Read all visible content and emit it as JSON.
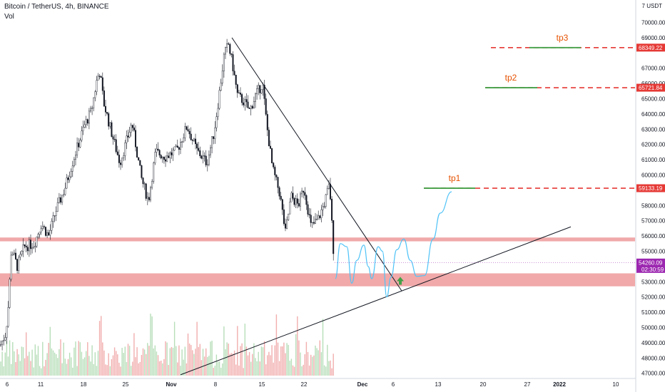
{
  "header": {
    "title": "Bitcoin / TetherUS, 4h, BINANCE",
    "volume_label": "Vol"
  },
  "price_axis": {
    "unit_label": "7 USDT",
    "ticks": [
      "70000.00",
      "69000.00",
      "67000.00",
      "66000.00",
      "65000.00",
      "64000.00",
      "63000.00",
      "62000.00",
      "61000.00",
      "60000.00",
      "58000.00",
      "57000.00",
      "56000.00",
      "55000.00",
      "53000.00",
      "52000.00",
      "51000.00",
      "50000.00",
      "49000.00",
      "48000.00",
      "47000.00"
    ]
  },
  "price_tags": {
    "tp3": "68349.22",
    "tp2": "65721.84",
    "tp1": "59133.19",
    "current": "54260.09",
    "countdown": "02:30:59"
  },
  "targets": [
    {
      "label": "tp1",
      "price": 59133.19
    },
    {
      "label": "tp2",
      "price": 65721.84
    },
    {
      "label": "tp3",
      "price": 68349.22
    }
  ],
  "zones": [
    {
      "low": 55650,
      "high": 55900
    },
    {
      "low": 52700,
      "high": 53550
    }
  ],
  "time_axis": {
    "labels": [
      "6",
      "11",
      "18",
      "25",
      "Nov",
      "8",
      "15",
      "22",
      "Dec",
      "6",
      "13",
      "20",
      "27",
      "2022",
      "10"
    ]
  },
  "colors": {
    "candle": "#131722",
    "zone": "#ef9a9a",
    "target_dash": "#e53935",
    "target_solid": "#43a047",
    "projection": "#4fc3f7",
    "current_tag": "#9c27b0",
    "target_tag": "#e53935",
    "arrow": "#43a047",
    "volume_up": "#a5d6a7",
    "volume_down": "#ef9a9a"
  }
}
